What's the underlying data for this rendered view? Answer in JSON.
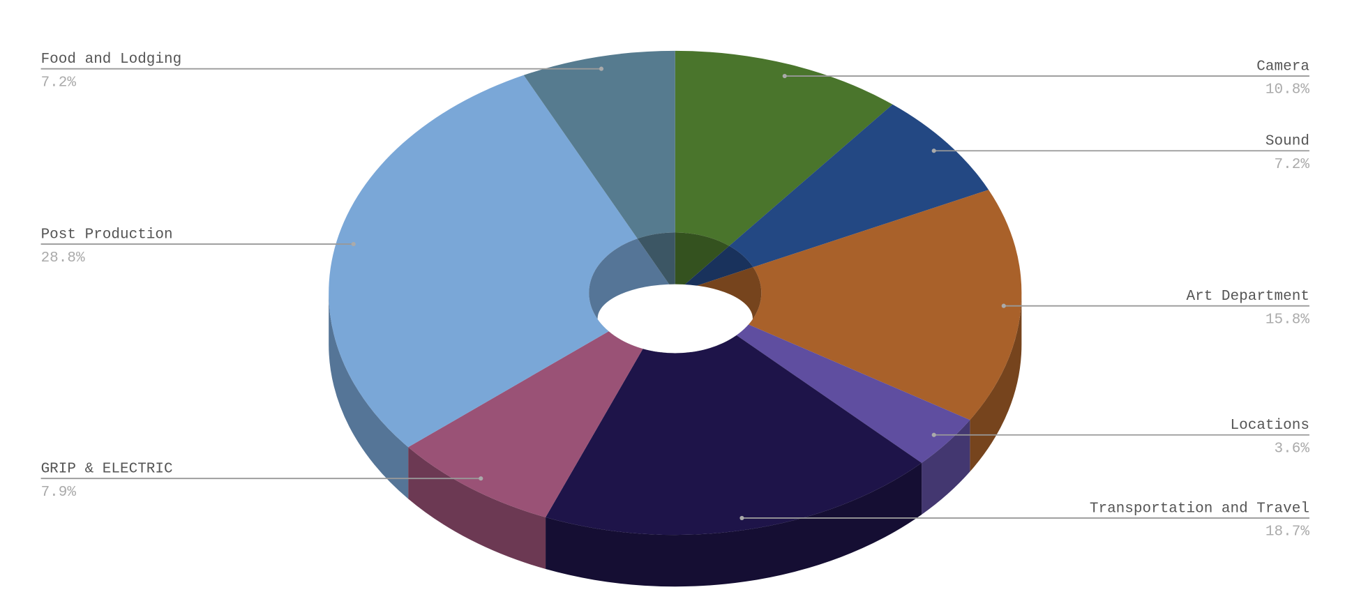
{
  "chart_data": {
    "type": "doughnut",
    "categories": [
      "Camera",
      "Sound",
      "Art Department",
      "Locations",
      "Transportation and Travel",
      "GRIP & ELECTRIC",
      "Post Production",
      "Food and Lodging"
    ],
    "values": [
      10.8,
      7.2,
      15.8,
      3.6,
      18.7,
      7.9,
      28.8,
      7.2
    ],
    "value_labels": [
      "10.8%",
      "7.2%",
      "15.8%",
      "3.6%",
      "18.7%",
      "7.9%",
      "28.8%",
      "7.2%"
    ],
    "colors": [
      "#4a752c",
      "#234883",
      "#a9612a",
      "#5f4ea0",
      "#1e1449",
      "#9a5276",
      "#7aa7d7",
      "#567b8f"
    ]
  }
}
